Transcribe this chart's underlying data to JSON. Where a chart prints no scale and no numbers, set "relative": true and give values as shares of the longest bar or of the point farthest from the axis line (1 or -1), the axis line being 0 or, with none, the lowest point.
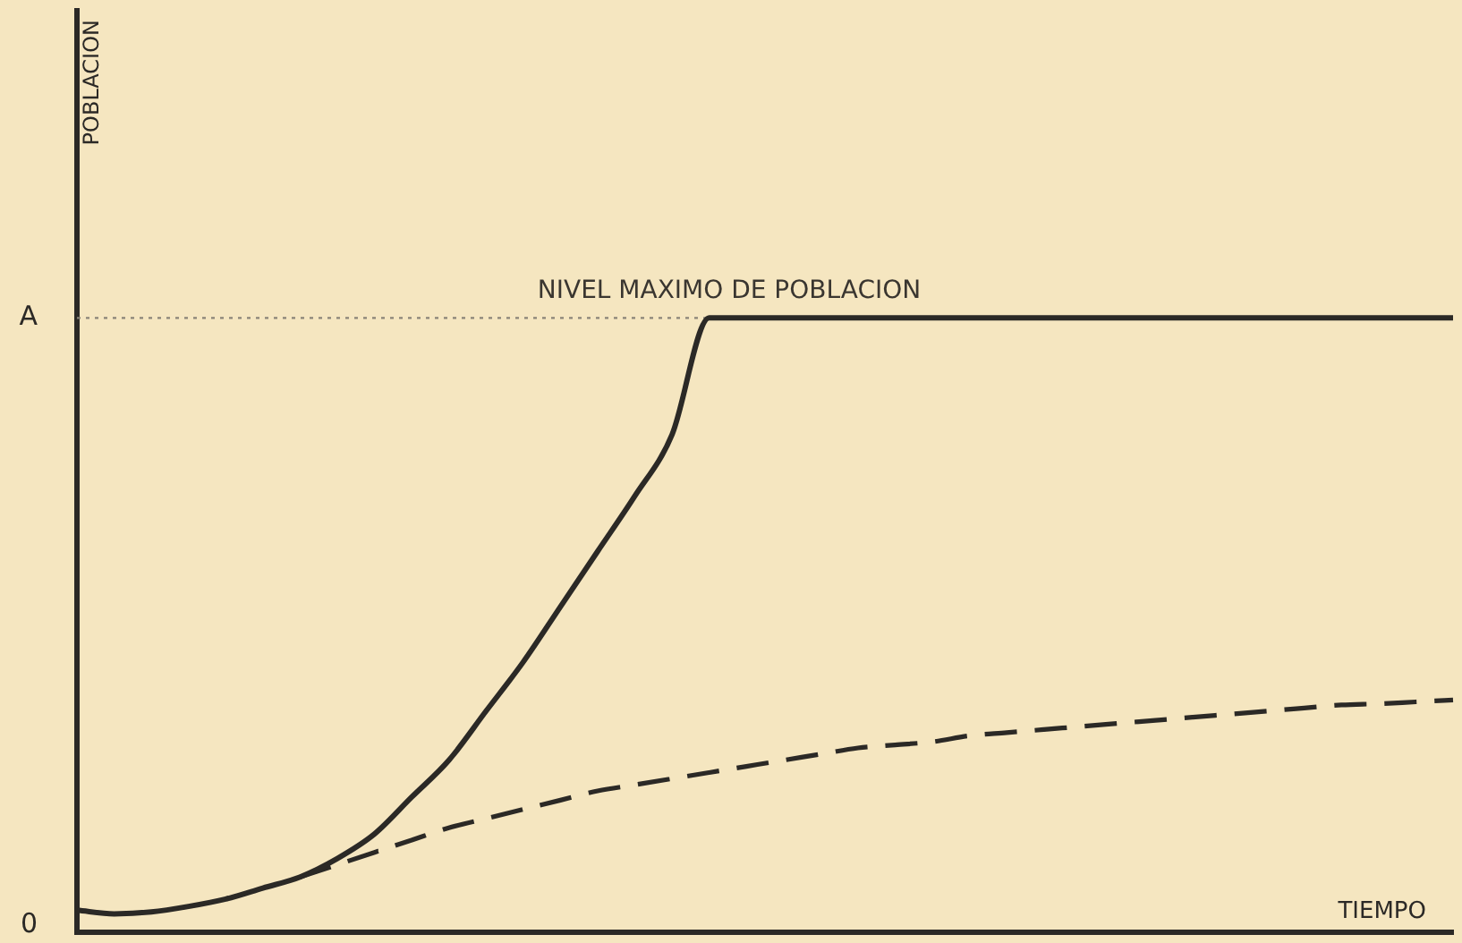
{
  "chart_data": {
    "type": "line",
    "relative": true,
    "xlabel": "TIEMPO",
    "categories": [
      null,
      null,
      null,
      null,
      null,
      null,
      null,
      null,
      null,
      null,
      null,
      null,
      null,
      null,
      null,
      null,
      null,
      null,
      null,
      null,
      null,
      null,
      null,
      null,
      null,
      null,
      null,
      null,
      null,
      null,
      null,
      null,
      null,
      null,
      null,
      null,
      null,
      null
    ],
    "series": [
      {
        "color": "#2b2926",
        "line_style": "solid",
        "values": [
          0.036,
          0.03,
          0.033,
          0.042,
          0.054,
          0.072,
          0.09,
          0.12,
          0.16,
          0.22,
          0.28,
          0.36,
          0.44,
          0.53,
          0.62,
          0.71,
          0.81,
          1,
          1,
          1,
          1,
          1,
          1,
          1,
          1,
          1,
          1,
          1,
          1,
          1,
          1,
          1,
          1,
          1,
          1,
          1,
          1,
          1
        ]
      },
      {
        "color": "#2b2926",
        "line_style": "dashed",
        "values": [
          null,
          null,
          null,
          null,
          null,
          null,
          0.09,
          0.11,
          0.13,
          0.15,
          0.17,
          0.185,
          0.2,
          0.215,
          0.23,
          0.24,
          0.25,
          0.26,
          0.27,
          0.28,
          0.29,
          0.3,
          0.305,
          0.31,
          0.32,
          0.325,
          0.33,
          0.335,
          0.34,
          0.345,
          0.35,
          0.355,
          0.36,
          0.365,
          0.37,
          0.372,
          0.375,
          0.378
        ]
      }
    ],
    "ref_lines": [
      {
        "axis": "y",
        "value": 1,
        "label": "NIVEL MAXIMO DE POBLACION",
        "color": "#8a8478",
        "line_style": "dotted"
      }
    ],
    "annotations": [
      "A",
      "0",
      "POBLACION"
    ],
    "grid": false,
    "legend": false,
    "marker": "none"
  }
}
